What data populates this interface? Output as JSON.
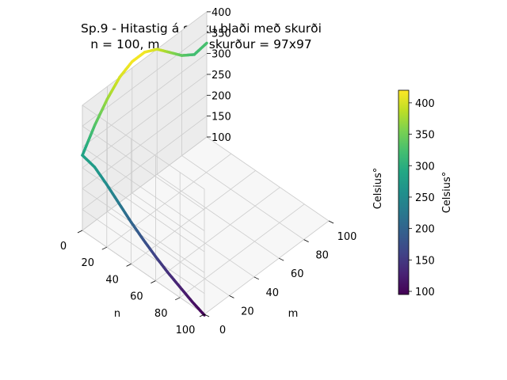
{
  "chart_data": {
    "type": "surface3d",
    "title": "Sp.9 - Hitastig á stöku blaði með skurði",
    "subtitle": "n = 100, m = 100, skurður = 97x97",
    "xlabel": "n",
    "ylabel": "m",
    "zlabel": "Celsius°",
    "xlim": [
      0,
      100
    ],
    "ylim": [
      0,
      100
    ],
    "zlim": [
      100,
      400
    ],
    "xticks": [
      "0",
      "20",
      "40",
      "60",
      "80",
      "100"
    ],
    "yticks": [
      "0",
      "20",
      "40",
      "60",
      "80",
      "100"
    ],
    "zticks": [
      "100",
      "150",
      "200",
      "250",
      "300",
      "350",
      "400"
    ],
    "grid": true,
    "colormap": "viridis",
    "colorbar": {
      "label": "Celsius°",
      "range": [
        95,
        420
      ],
      "ticks": [
        "100",
        "150",
        "200",
        "250",
        "300",
        "350",
        "400"
      ]
    },
    "edge_along_n_at_m0": {
      "n": [
        100,
        90,
        80,
        70,
        60,
        50,
        40,
        30,
        20,
        10,
        0
      ],
      "temperature": [
        98,
        110,
        125,
        140,
        158,
        178,
        200,
        225,
        250,
        272,
        280
      ]
    },
    "edge_along_m_at_n0": {
      "m": [
        0,
        10,
        20,
        30,
        40,
        50,
        60,
        70,
        80,
        90,
        100
      ],
      "temperature": [
        280,
        330,
        370,
        400,
        415,
        415,
        400,
        370,
        340,
        320,
        325
      ]
    }
  }
}
